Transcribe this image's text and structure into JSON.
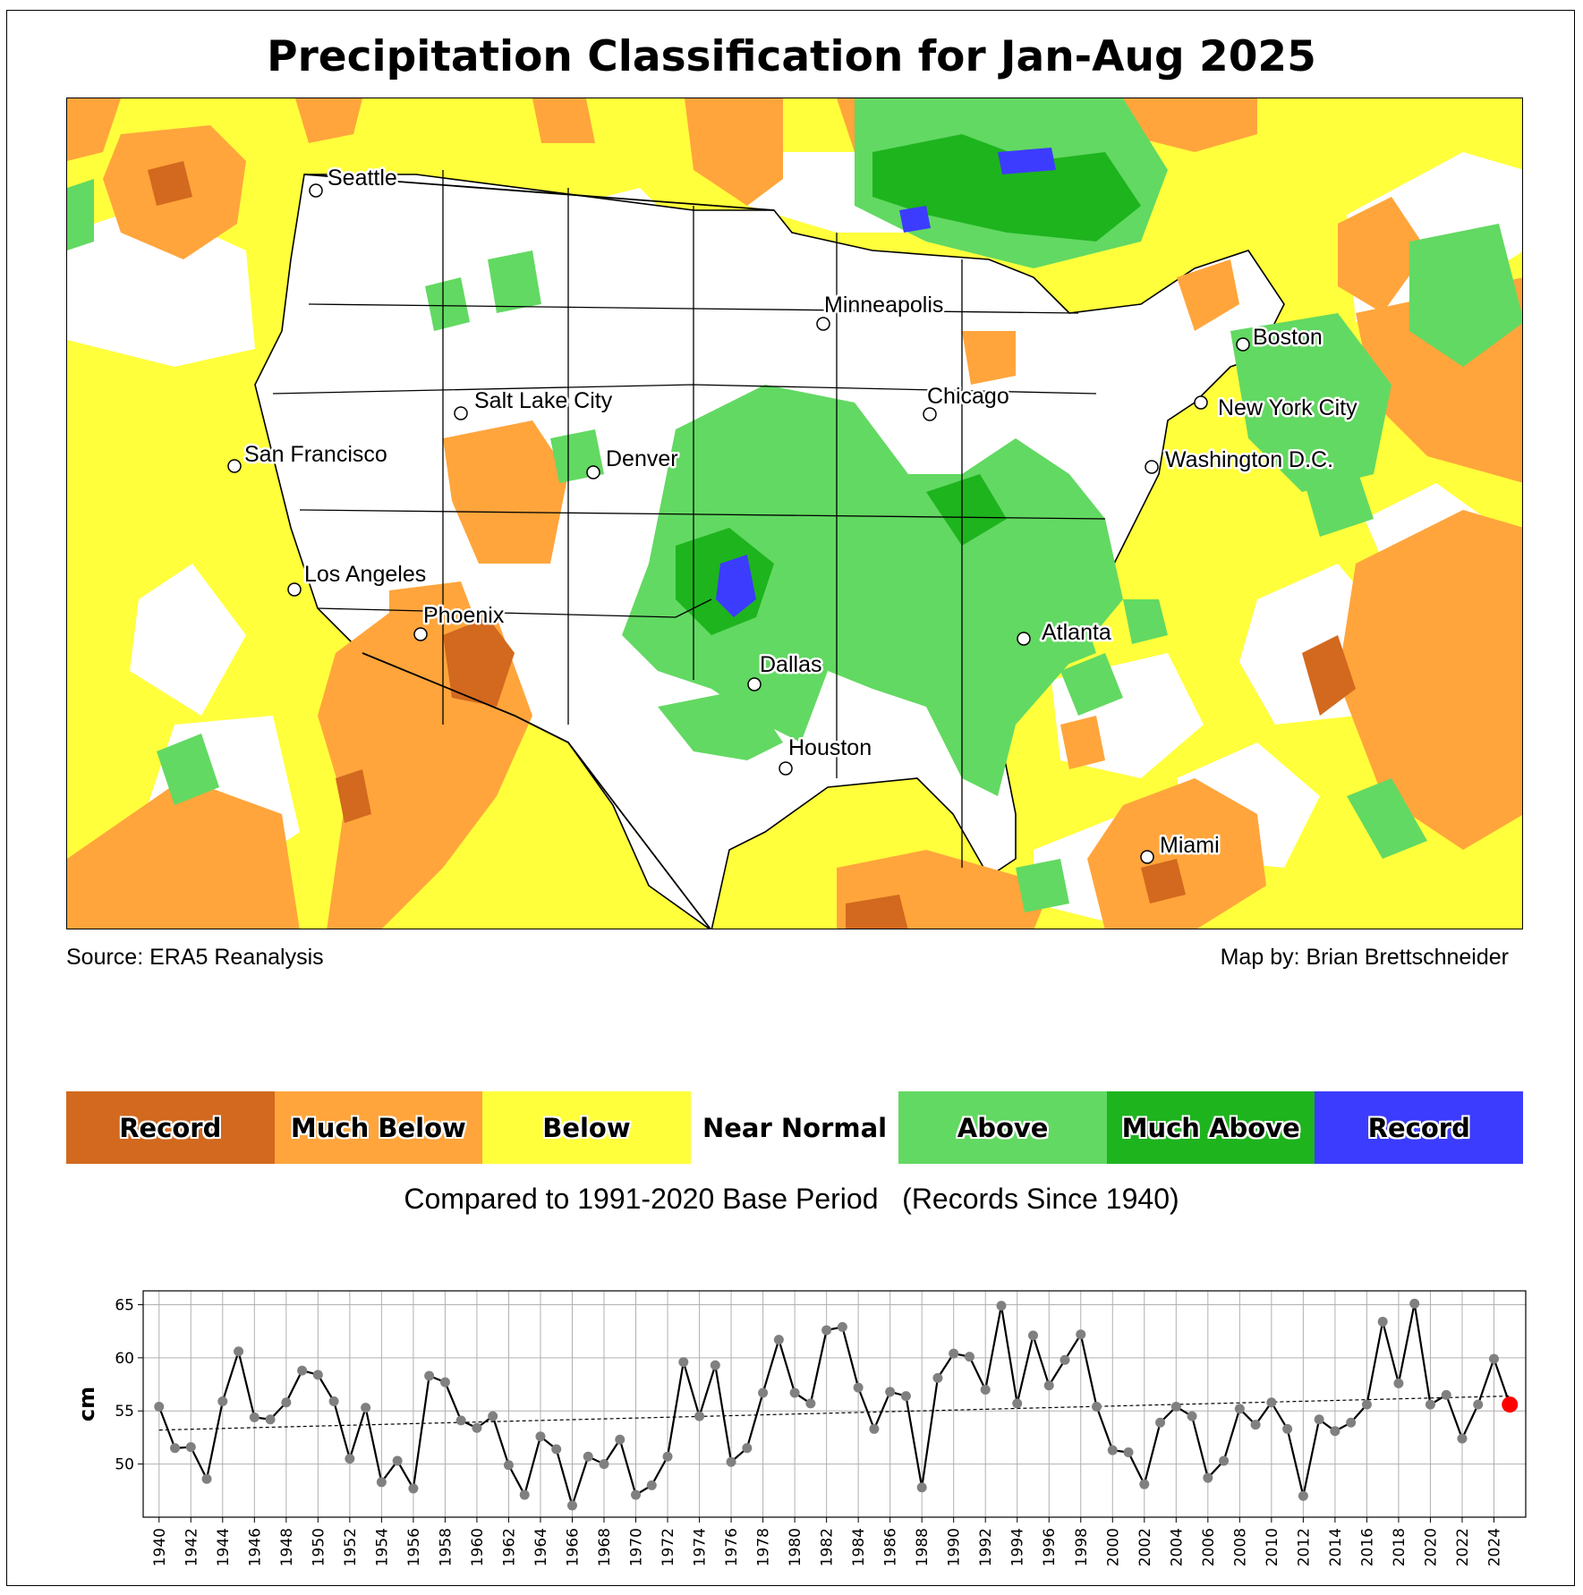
{
  "title": "Precipitation Classification for Jan-Aug 2025",
  "source": "Source: ERA5 Reanalysis",
  "credit": "Map by: Brian Brettschneider",
  "base_period": "Compared to 1991-2020 Base Period   (Records Since 1940)",
  "colors": {
    "record_dry": "#d2691e",
    "much_below": "#ffa53c",
    "below": "#ffff3c",
    "near_normal": "#ffffff",
    "above": "#62d962",
    "much_above": "#1eb41e",
    "record_wet": "#3c3cff"
  },
  "legend": [
    {
      "label": "Record",
      "color": "#d2691e"
    },
    {
      "label": "Much Below",
      "color": "#ffa53c"
    },
    {
      "label": "Below",
      "color": "#ffff3c"
    },
    {
      "label": "Near Normal",
      "color": "#ffffff"
    },
    {
      "label": "Above",
      "color": "#62d962"
    },
    {
      "label": "Much Above",
      "color": "#1eb41e"
    },
    {
      "label": "Record",
      "color": "#3c3cff"
    }
  ],
  "cities": [
    {
      "name": "Seattle"
    },
    {
      "name": "Minneapolis"
    },
    {
      "name": "Boston"
    },
    {
      "name": "Salt Lake City"
    },
    {
      "name": "Chicago"
    },
    {
      "name": "New York City"
    },
    {
      "name": "San Francisco"
    },
    {
      "name": "Denver"
    },
    {
      "name": "Washington D.C."
    },
    {
      "name": "Los Angeles"
    },
    {
      "name": "Phoenix"
    },
    {
      "name": "Atlanta"
    },
    {
      "name": "Dallas"
    },
    {
      "name": "Houston"
    },
    {
      "name": "Miami"
    }
  ],
  "chart_data": {
    "type": "line",
    "ylabel": "cm",
    "xlim": [
      1939,
      2026
    ],
    "ylim": [
      45,
      66.3
    ],
    "yticks": [
      50,
      55,
      60,
      65
    ],
    "xticks": [
      1940,
      1942,
      1944,
      1946,
      1948,
      1950,
      1952,
      1954,
      1956,
      1958,
      1960,
      1962,
      1964,
      1966,
      1968,
      1970,
      1972,
      1974,
      1976,
      1978,
      1980,
      1982,
      1984,
      1986,
      1988,
      1990,
      1992,
      1994,
      1996,
      1998,
      2000,
      2002,
      2004,
      2006,
      2008,
      2010,
      2012,
      2014,
      2016,
      2018,
      2020,
      2022,
      2024
    ],
    "grid": true,
    "x": [
      1940,
      1941,
      1942,
      1943,
      1944,
      1945,
      1946,
      1947,
      1948,
      1949,
      1950,
      1951,
      1952,
      1953,
      1954,
      1955,
      1956,
      1957,
      1958,
      1959,
      1960,
      1961,
      1962,
      1963,
      1964,
      1965,
      1966,
      1967,
      1968,
      1969,
      1970,
      1971,
      1972,
      1973,
      1974,
      1975,
      1976,
      1977,
      1978,
      1979,
      1980,
      1981,
      1982,
      1983,
      1984,
      1985,
      1986,
      1987,
      1988,
      1989,
      1990,
      1991,
      1992,
      1993,
      1994,
      1995,
      1996,
      1997,
      1998,
      1999,
      2000,
      2001,
      2002,
      2003,
      2004,
      2005,
      2006,
      2007,
      2008,
      2009,
      2010,
      2011,
      2012,
      2013,
      2014,
      2015,
      2016,
      2017,
      2018,
      2019,
      2020,
      2021,
      2022,
      2023,
      2024,
      2025
    ],
    "values": [
      55.4,
      51.5,
      51.6,
      48.6,
      55.9,
      60.6,
      54.4,
      54.2,
      55.8,
      58.8,
      58.4,
      55.9,
      50.5,
      55.3,
      48.3,
      50.3,
      47.7,
      58.3,
      57.7,
      54.1,
      53.4,
      54.5,
      49.9,
      47.1,
      52.6,
      51.4,
      46.1,
      50.7,
      50.0,
      52.3,
      47.1,
      48.0,
      50.7,
      59.6,
      54.5,
      59.3,
      50.2,
      51.5,
      56.7,
      61.7,
      56.7,
      55.7,
      62.6,
      62.9,
      57.2,
      53.3,
      56.8,
      56.4,
      47.8,
      58.1,
      60.4,
      60.1,
      57.0,
      64.9,
      55.7,
      62.1,
      57.4,
      59.8,
      62.2,
      55.4,
      51.3,
      51.1,
      48.1,
      53.9,
      55.4,
      54.5,
      48.7,
      50.3,
      55.2,
      53.7,
      55.8,
      53.3,
      47.0,
      54.2,
      53.1,
      53.9,
      55.6,
      63.4,
      57.6,
      65.1,
      55.6,
      56.5,
      52.4,
      55.6,
      59.9,
      55.6
    ],
    "trend": {
      "start": [
        1940,
        53.2
      ],
      "end": [
        2025,
        56.4
      ]
    },
    "highlight": {
      "year": 2025,
      "value": 55.6,
      "color": "#ff0000"
    }
  }
}
